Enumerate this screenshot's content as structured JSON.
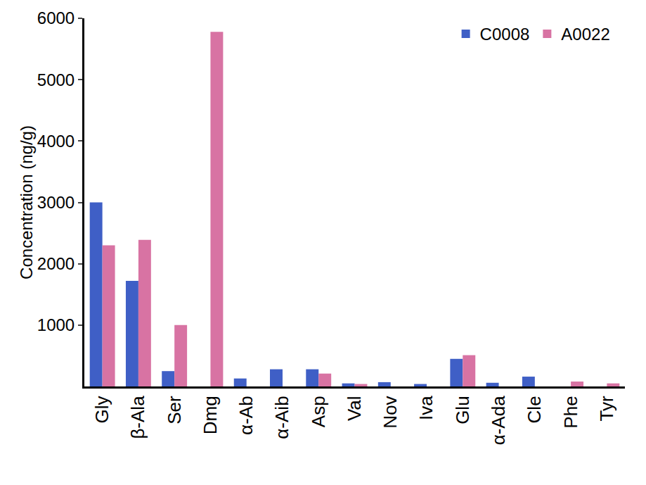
{
  "chart_data": {
    "type": "bar",
    "y_label": "Concentration (ng/g)",
    "categories": [
      "Gly",
      "β-Ala",
      "Ser",
      "Dmg",
      "α-Ab",
      "α-Aib",
      "Asp",
      "Val",
      "Nov",
      "Iva",
      "Glu",
      "α-Ada",
      "Cle",
      "Phe",
      "Tyr"
    ],
    "series": [
      {
        "name": "C0008",
        "color": "#3f5fc6",
        "values": [
          3000,
          1720,
          250,
          0,
          130,
          280,
          280,
          50,
          70,
          40,
          450,
          60,
          160,
          0,
          0
        ]
      },
      {
        "name": "A0022",
        "color": "#d873a3",
        "values": [
          2300,
          2390,
          1000,
          5780,
          0,
          0,
          210,
          40,
          0,
          0,
          510,
          0,
          0,
          80,
          50
        ]
      }
    ],
    "ylim": [
      0,
      6000
    ],
    "yticks": [
      1000,
      2000,
      3000,
      4000,
      5000,
      6000
    ],
    "grid": false,
    "legend": "top right"
  }
}
